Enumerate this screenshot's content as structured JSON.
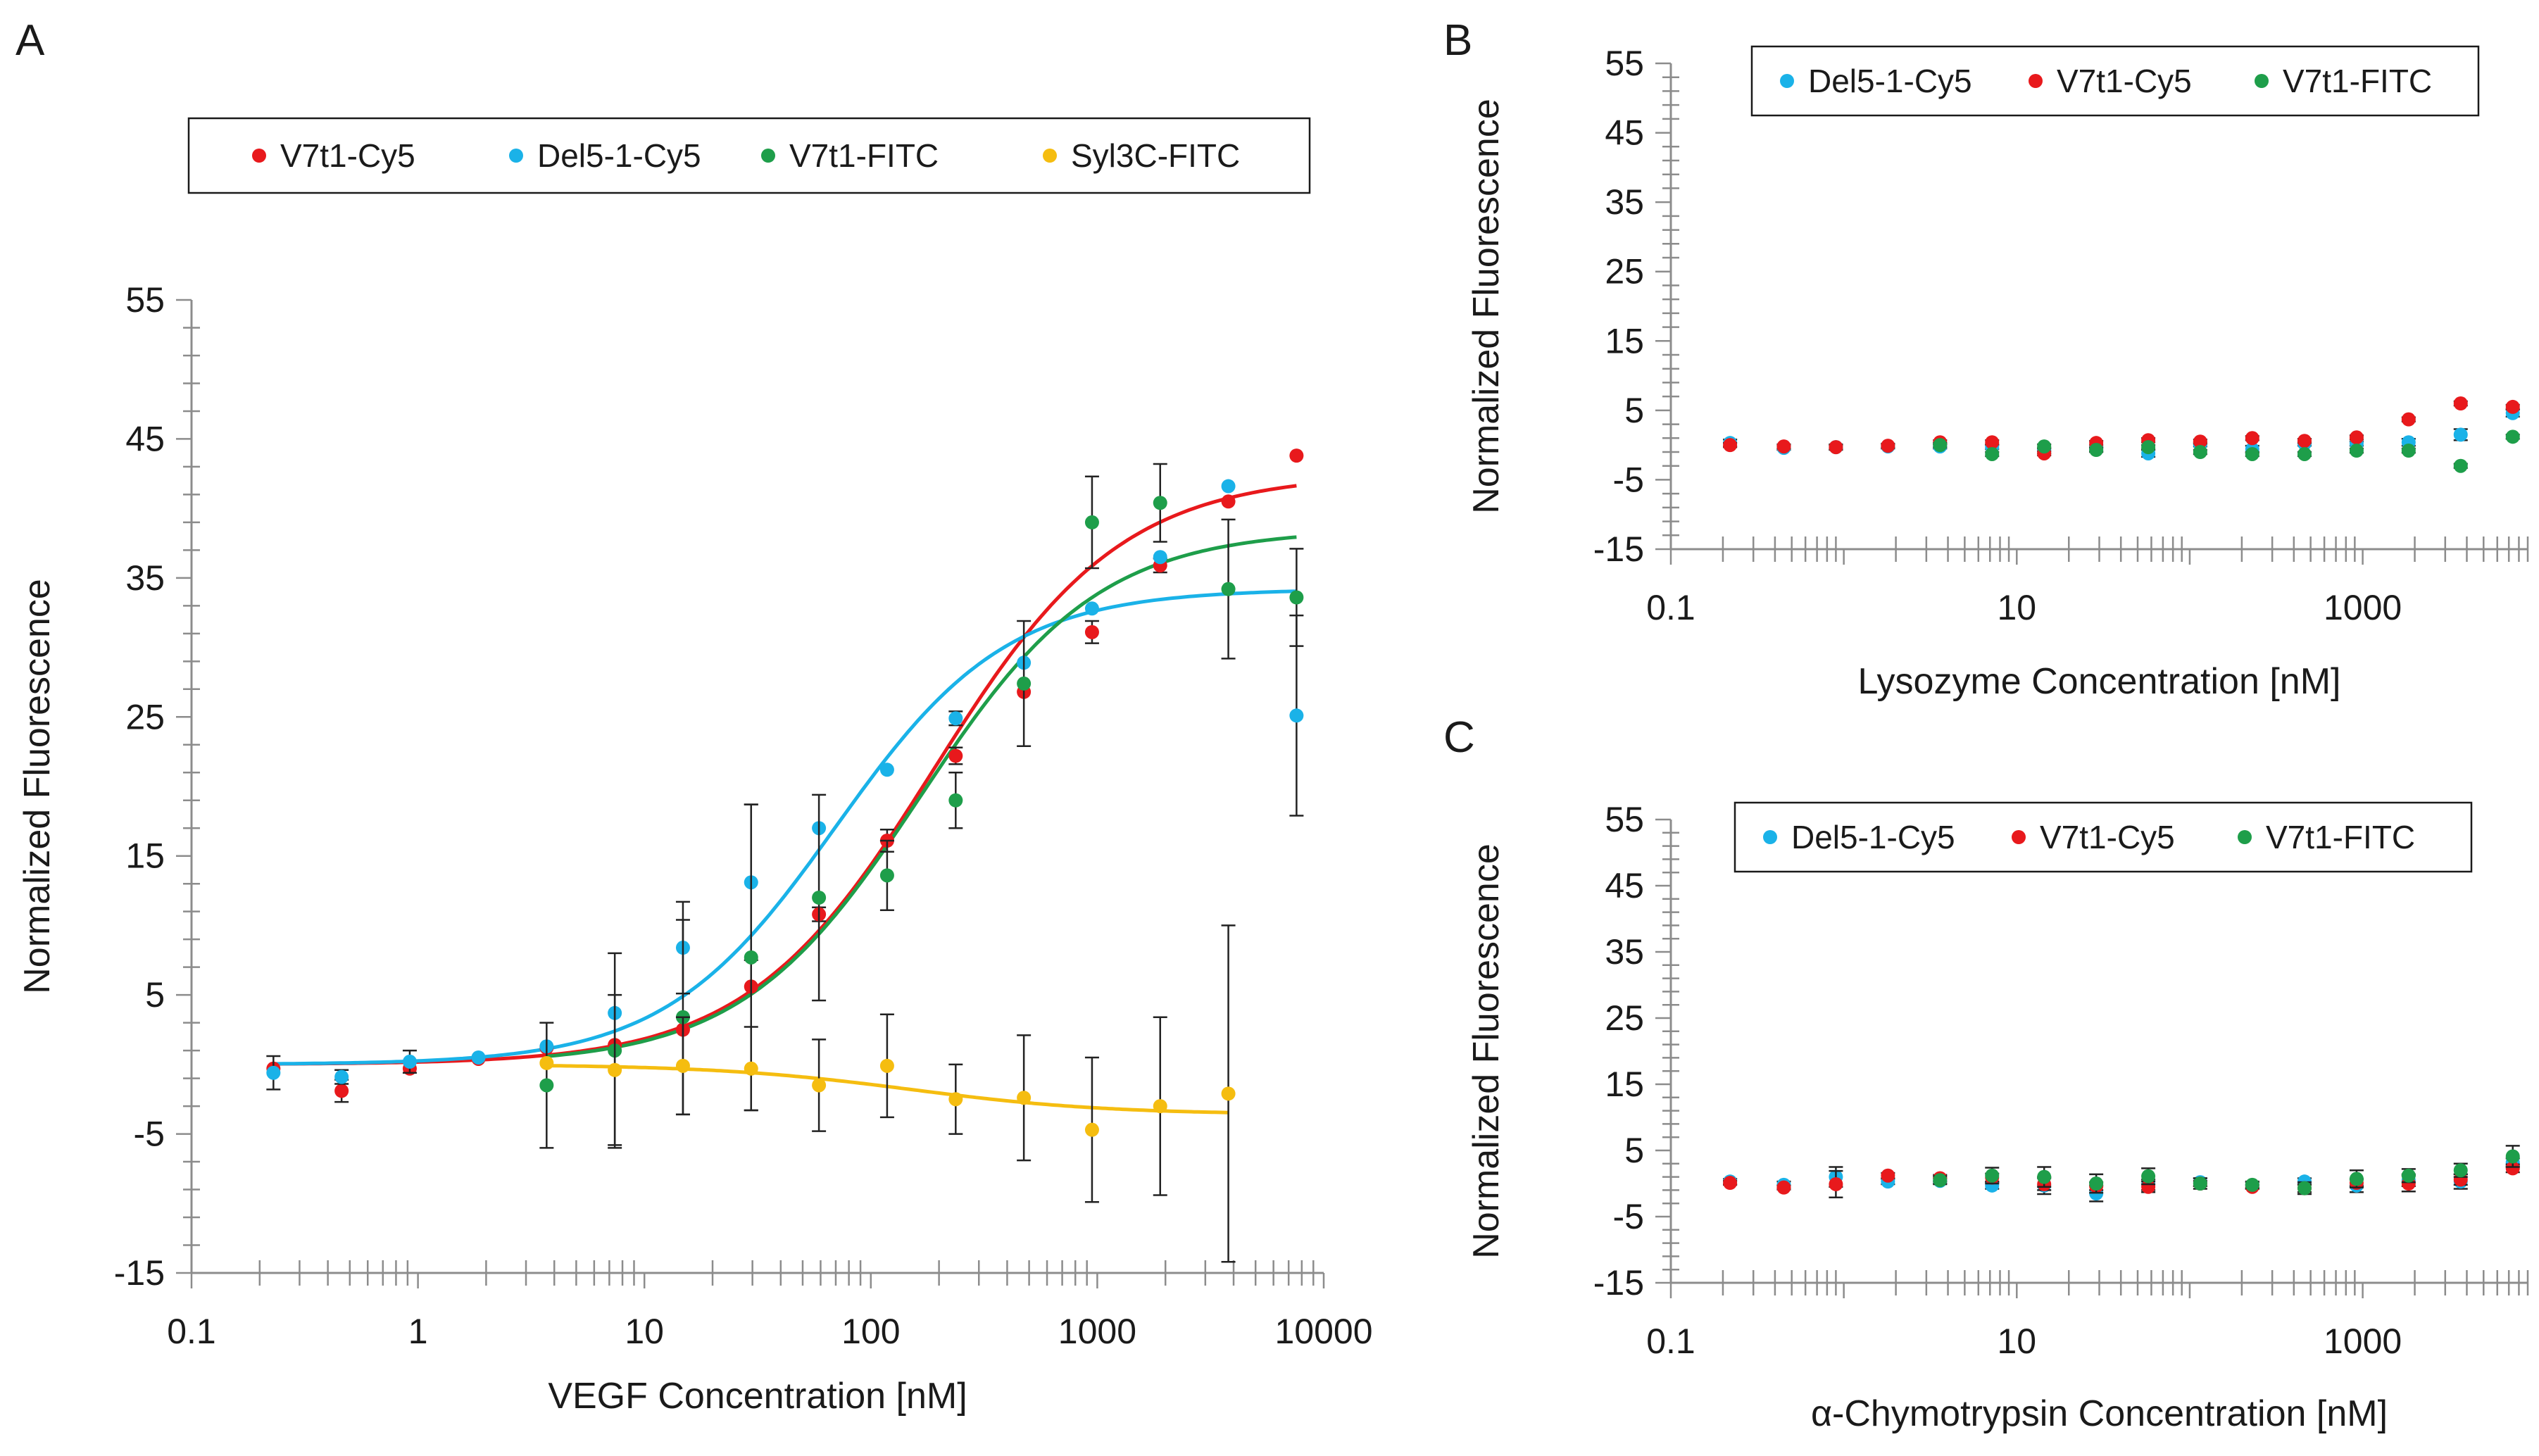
{
  "colors": {
    "red": "#e8191c",
    "blue": "#1ab2e8",
    "green": "#1e9e4a",
    "yellow": "#f5bd10",
    "axis": "#8c8c8c",
    "text": "#1a1a1a"
  },
  "chart_data": [
    {
      "panel": "A",
      "type": "scatter",
      "xscale": "log",
      "xlabel": "VEGF Concentration [nM]",
      "ylabel": "Normalized Fluorescence",
      "xticks": [
        "0.1",
        "1",
        "10",
        "100",
        "1000",
        "10000"
      ],
      "yticks": [
        "-15",
        "-5",
        "5",
        "15",
        "25",
        "35",
        "45",
        "55"
      ],
      "xlim": [
        0.1,
        10000
      ],
      "ylim": [
        -15,
        55
      ],
      "legend_position": "top",
      "series": [
        {
          "name": "V7t1-Cy5",
          "color": "red",
          "x": [
            0.23,
            0.46,
            0.92,
            1.85,
            3.7,
            7.4,
            14.8,
            29.6,
            59,
            118,
            237,
            474,
            948,
            1896,
            3792,
            7584
          ],
          "y": [
            -0.3,
            -1.9,
            -0.3,
            0.4,
            1.2,
            1.4,
            2.5,
            5.6,
            10.8,
            16.1,
            22.2,
            26.8,
            31.1,
            35.9,
            40.5,
            43.8
          ],
          "err": [
            0,
            0.8,
            0,
            0,
            0,
            0,
            0,
            0,
            0.5,
            0.8,
            0.6,
            0,
            0.8,
            0.5,
            0,
            0
          ],
          "fit": {
            "bottom": 0,
            "top": 42.5,
            "ec50": 190,
            "hill": 1.05
          }
        },
        {
          "name": "Del5-1-Cy5",
          "color": "blue",
          "x": [
            0.23,
            0.46,
            0.92,
            1.85,
            3.7,
            7.4,
            14.8,
            29.6,
            59,
            118,
            237,
            474,
            948,
            1896,
            3792,
            7584
          ],
          "y": [
            -0.6,
            -0.9,
            0.2,
            0.5,
            1.3,
            3.7,
            8.4,
            13.1,
            17.0,
            21.2,
            24.9,
            28.9,
            32.8,
            36.5,
            41.6,
            25.1
          ],
          "err": [
            1.2,
            0.5,
            0.8,
            0,
            0,
            0,
            3.3,
            5.6,
            0,
            0,
            0.5,
            0,
            0,
            0,
            0,
            7.2
          ],
          "fit": {
            "bottom": 0,
            "top": 34.2,
            "ec50": 70,
            "hill": 1.15
          }
        },
        {
          "name": "V7t1-FITC",
          "color": "green",
          "x": [
            3.7,
            7.4,
            14.8,
            29.6,
            59,
            118,
            237,
            474,
            948,
            1896,
            3792,
            7584
          ],
          "y": [
            -1.5,
            1.0,
            3.4,
            7.7,
            12.0,
            13.6,
            19.0,
            27.4,
            39.0,
            40.4,
            34.2,
            33.6
          ],
          "err": [
            4.5,
            7.0,
            7.0,
            11.0,
            7.4,
            2.5,
            2.0,
            4.5,
            3.3,
            2.8,
            5.0,
            3.5
          ],
          "fit": {
            "bottom": 0,
            "top": 38.5,
            "ec50": 165,
            "hill": 1.1
          }
        },
        {
          "name": "Syl3C-FITC",
          "color": "yellow",
          "x": [
            3.7,
            7.4,
            14.8,
            29.6,
            59,
            118,
            237,
            474,
            948,
            1896,
            3792
          ],
          "y": [
            0.1,
            -0.4,
            -0.1,
            -0.3,
            -1.5,
            -0.1,
            -2.5,
            -2.4,
            -4.7,
            -3.0,
            -2.1
          ],
          "err": [
            0,
            5.4,
            3.5,
            3.0,
            3.3,
            3.7,
            2.5,
            4.5,
            5.2,
            6.4,
            12.1
          ],
          "fit": {
            "bottom": 0,
            "top": -3.6,
            "ec50": 150,
            "hill": 1.0
          }
        }
      ]
    },
    {
      "panel": "B",
      "type": "scatter",
      "xscale": "log",
      "xlabel": "Lysozyme Concentration [nM]",
      "ylabel": "Normalized Fluorescence",
      "xticks": [
        "0.1",
        "10",
        "1000"
      ],
      "yticks": [
        "-15",
        "-5",
        "5",
        "15",
        "25",
        "35",
        "45",
        "55"
      ],
      "xlim": [
        0.1,
        9000
      ],
      "ylim": [
        -15,
        55
      ],
      "legend_position": "top-right",
      "series": [
        {
          "name": "Del5-1-Cy5",
          "color": "blue",
          "x": [
            0.22,
            0.45,
            0.9,
            1.8,
            3.6,
            7.2,
            14.4,
            28.8,
            57.6,
            115,
            230,
            461,
            922,
            1843,
            3686,
            7373
          ],
          "y": [
            0.3,
            -0.4,
            -0.3,
            -0.2,
            -0.2,
            -0.3,
            -0.8,
            -0.6,
            -1.2,
            0.1,
            -0.6,
            0.2,
            0.2,
            0.4,
            1.5,
            4.6
          ],
          "err": [
            0.5,
            0.3,
            0.4,
            0.3,
            0.3,
            0.3,
            0.4,
            0.3,
            0.5,
            0.3,
            0.5,
            0.3,
            0.3,
            0.5,
            0.8,
            0.5
          ]
        },
        {
          "name": "V7t1-Cy5",
          "color": "red",
          "x": [
            0.22,
            0.45,
            0.9,
            1.8,
            3.6,
            7.2,
            14.4,
            28.8,
            57.6,
            115,
            230,
            461,
            922,
            1843,
            3686,
            7373
          ],
          "y": [
            0,
            -0.2,
            -0.3,
            -0.1,
            0.4,
            0.4,
            -1.2,
            0.3,
            0.7,
            0.5,
            1.0,
            0.6,
            1.1,
            3.7,
            6.0,
            5.5
          ],
          "err": [
            0.3,
            0.3,
            0.3,
            0.3,
            0.3,
            0.3,
            0.3,
            0.3,
            0.3,
            0.3,
            0.3,
            0.3,
            0.3,
            0.3,
            0.3,
            0.3
          ]
        },
        {
          "name": "V7t1-FITC",
          "color": "green",
          "x": [
            3.6,
            7.2,
            14.4,
            28.8,
            57.6,
            115,
            230,
            461,
            922,
            1843,
            3686,
            7373
          ],
          "y": [
            0.0,
            -1.3,
            -0.2,
            -0.7,
            -0.3,
            -1.0,
            -1.3,
            -1.3,
            -0.8,
            -0.8,
            -3.0,
            1.2
          ],
          "err": [
            0.3,
            0.3,
            0.3,
            0.3,
            0.3,
            0.3,
            0.3,
            0.3,
            0.3,
            0.3,
            0.3,
            0.3
          ]
        }
      ]
    },
    {
      "panel": "C",
      "type": "scatter",
      "xscale": "log",
      "xlabel": "α-Chymotrypsin Concentration [nM]",
      "ylabel": "Normalized Fluorescence",
      "xticks": [
        "0.1",
        "10",
        "1000"
      ],
      "yticks": [
        "-15",
        "-5",
        "5",
        "15",
        "25",
        "35",
        "45",
        "55"
      ],
      "xlim": [
        0.1,
        9000
      ],
      "ylim": [
        -15,
        55
      ],
      "legend_position": "top-right",
      "series": [
        {
          "name": "Del5-1-Cy5",
          "color": "blue",
          "x": [
            0.22,
            0.45,
            0.9,
            1.8,
            3.6,
            7.2,
            14.4,
            28.8,
            57.6,
            115,
            230,
            461,
            922,
            1843,
            3686,
            7373
          ],
          "y": [
            0.3,
            -0.2,
            1.0,
            0.3,
            0.4,
            -0.3,
            -0.3,
            -1.5,
            -0.2,
            0.2,
            -0.3,
            0.3,
            -0.3,
            0.5,
            0.3,
            3.2
          ],
          "err": [
            0.4,
            0.5,
            1.5,
            0.4,
            0.4,
            0.5,
            1.3,
            1.2,
            0.8,
            0.6,
            0.5,
            0.5,
            1.0,
            0.9,
            1.1,
            0.6
          ]
        },
        {
          "name": "V7t1-Cy5",
          "color": "red",
          "x": [
            0.22,
            0.45,
            0.9,
            1.8,
            3.6,
            7.2,
            14.4,
            28.8,
            57.6,
            115,
            230,
            461,
            922,
            1843,
            3686,
            7373
          ],
          "y": [
            0.1,
            -0.6,
            -0.1,
            1.2,
            0.8,
            0.9,
            -0.1,
            -0.4,
            -0.5,
            0.0,
            -0.5,
            -0.7,
            0.1,
            0.0,
            0.6,
            2.3
          ],
          "err": [
            0.3,
            0.3,
            2.0,
            0.4,
            0.5,
            0.6,
            0.9,
            0.6,
            0.8,
            0.4,
            0.3,
            0.6,
            0.5,
            1.2,
            0.8,
            0.6
          ]
        },
        {
          "name": "V7t1-FITC",
          "color": "green",
          "x": [
            3.6,
            7.2,
            14.4,
            28.8,
            57.6,
            115,
            230,
            461,
            922,
            1843,
            3686,
            7373
          ],
          "y": [
            0.5,
            1.2,
            1.0,
            0.0,
            1.1,
            0.0,
            -0.2,
            -0.7,
            0.7,
            1.2,
            2.0,
            4.1
          ],
          "err": [
            0.6,
            1.2,
            1.5,
            1.4,
            1.2,
            0.8,
            0.5,
            0.9,
            1.3,
            1.0,
            1.0,
            1.6
          ]
        }
      ]
    }
  ]
}
